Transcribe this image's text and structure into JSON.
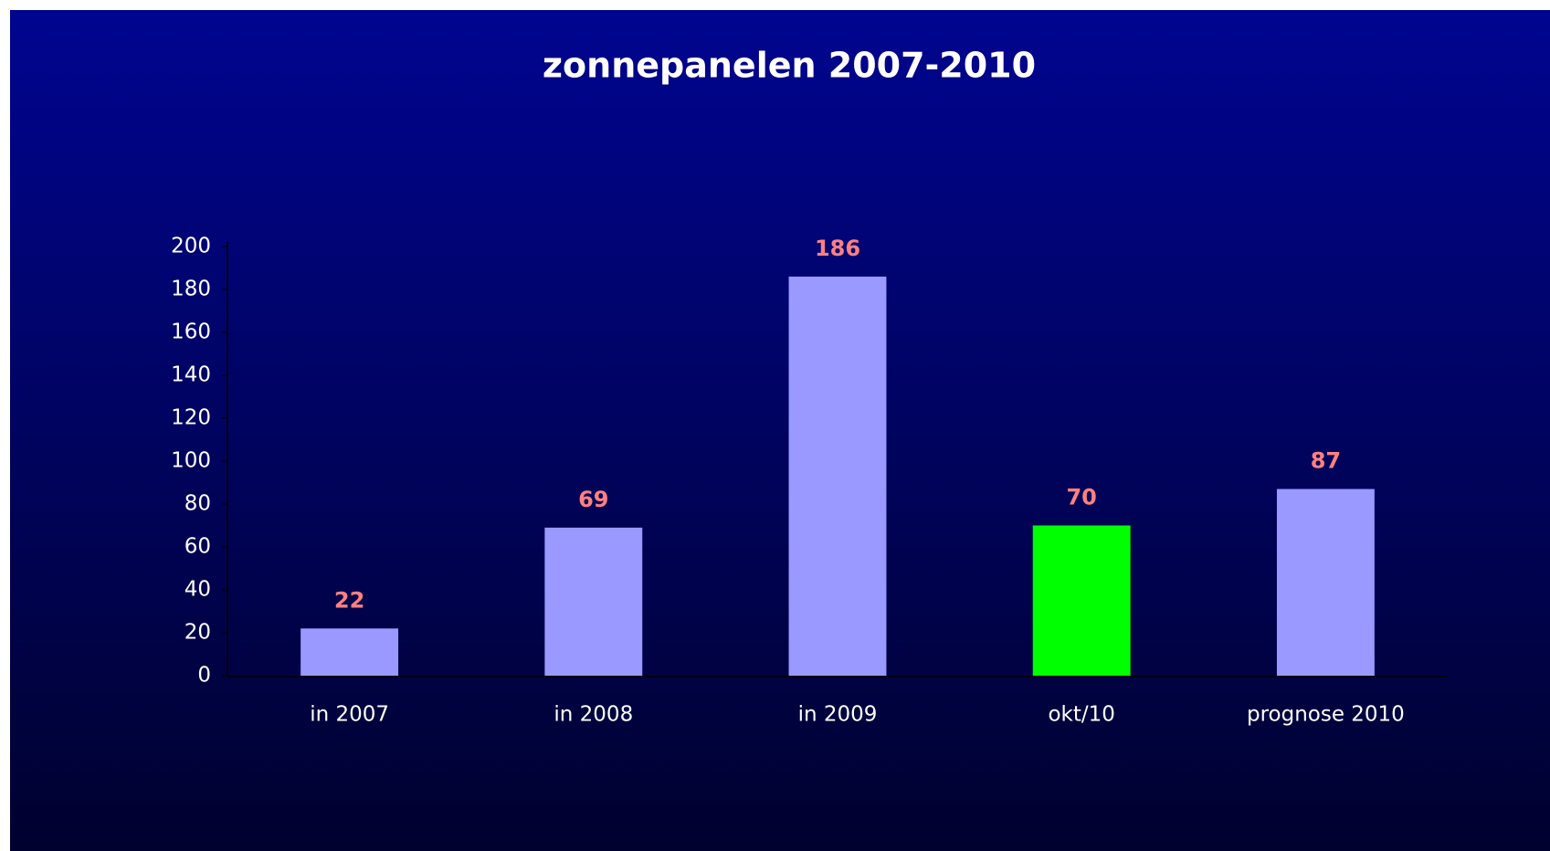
{
  "chart_data": {
    "type": "bar",
    "title": "zonnepanelen 2007-2010",
    "categories": [
      "in 2007",
      "in 2008",
      "in 2009",
      "okt/10",
      "prognose 2010"
    ],
    "values": [
      22,
      69,
      186,
      70,
      87
    ],
    "colors": [
      "#9999ff",
      "#9999ff",
      "#9999ff",
      "#00ff00",
      "#9999ff"
    ],
    "label_color": "#ff8080",
    "ylim": [
      0,
      200
    ],
    "yticks": [
      0,
      20,
      40,
      60,
      80,
      100,
      120,
      140,
      160,
      180,
      200
    ],
    "grid": false
  }
}
